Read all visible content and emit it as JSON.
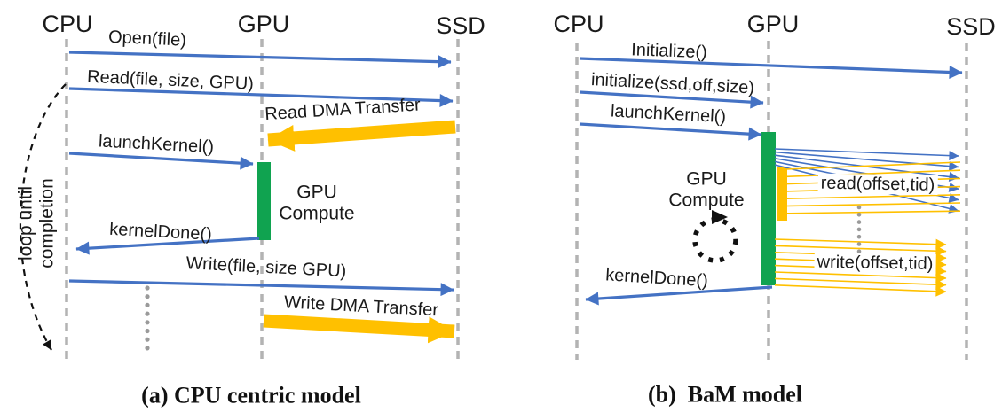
{
  "colors": {
    "arrow_blue": "#4472C4",
    "dma_yellow": "#FFC000",
    "activation_green": "#10A350",
    "lifeline_gray": "#b3b3b3"
  },
  "panel_a": {
    "caption": "(a) CPU centric model",
    "lifelines": {
      "cpu": "CPU",
      "gpu": "GPU",
      "ssd": "SSD"
    },
    "loop_label": "loop until\ncompletion",
    "messages": {
      "open": "Open(file)",
      "read": "Read(file, size, GPU)",
      "read_dma": "Read DMA Transfer",
      "launch_kernel": "launchKernel()",
      "gpu_compute": "GPU\nCompute",
      "kernel_done": "kernelDone()",
      "write": "Write(file, size GPU)",
      "write_dma": "Write DMA Transfer"
    }
  },
  "panel_b": {
    "caption": "(b)  BaM model",
    "lifelines": {
      "cpu": "CPU",
      "gpu": "GPU",
      "ssd": "SSD"
    },
    "messages": {
      "initialize": "Initialize()",
      "initialize_kernel": "initialize(ssd,off,size)",
      "launch_kernel": "launchKernel()",
      "gpu_compute": "GPU\nCompute",
      "read": "read(offset,tid)",
      "write": "write(offset,tid)",
      "kernel_done": "kernelDone()"
    }
  }
}
